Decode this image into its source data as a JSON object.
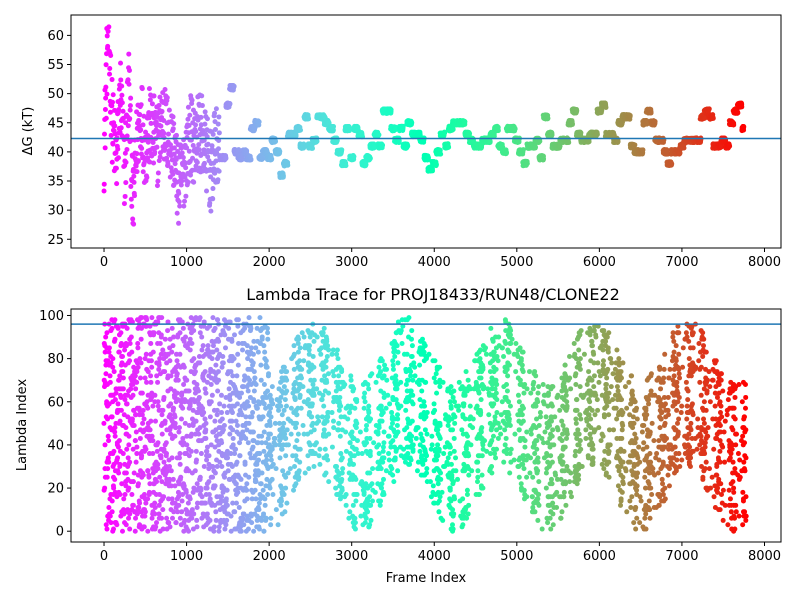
{
  "chart_data": [
    {
      "type": "scatter",
      "title": "",
      "xlabel": "",
      "ylabel": "ΔG (kT)",
      "xlim": [
        -400,
        8200
      ],
      "ylim": [
        23.5,
        63.5
      ],
      "xticks": [
        0,
        1000,
        2000,
        3000,
        4000,
        5000,
        6000,
        7000,
        8000
      ],
      "xtick_labels": [
        "0",
        "1000",
        "2000",
        "3000",
        "4000",
        "5000",
        "6000",
        "7000",
        "8000"
      ],
      "yticks": [
        25,
        30,
        35,
        40,
        45,
        50,
        55,
        60
      ],
      "ytick_labels": [
        "25",
        "30",
        "35",
        "40",
        "45",
        "50",
        "55",
        "60"
      ],
      "reference_line": {
        "axis": "y",
        "value": 42.3,
        "color": "#1f77b4"
      },
      "colormap": "rainbow (frame index mapped from red at 0 to violet at the last frame)",
      "trace": {
        "x": [
          0,
          50,
          100,
          150,
          200,
          250,
          300,
          350,
          400,
          450,
          500,
          550,
          600,
          650,
          700,
          750,
          800,
          850,
          900,
          950,
          1000,
          1050,
          1100,
          1150,
          1200,
          1250,
          1300,
          1350,
          1400,
          1450,
          1500,
          1550,
          1600,
          1650,
          1700,
          1750,
          1800,
          1850,
          1900,
          1950,
          2000,
          2050,
          2100,
          2150,
          2200,
          2250,
          2300,
          2350,
          2400,
          2450,
          2500,
          2550,
          2600,
          2650,
          2700,
          2750,
          2800,
          2850,
          2900,
          2950,
          3000,
          3050,
          3100,
          3150,
          3200,
          3250,
          3300,
          3350,
          3400,
          3450,
          3500,
          3550,
          3600,
          3650,
          3700,
          3750,
          3800,
          3850,
          3900,
          3950,
          4000,
          4050,
          4100,
          4150,
          4200,
          4250,
          4300,
          4350,
          4400,
          4450,
          4500,
          4550,
          4600,
          4650,
          4700,
          4750,
          4800,
          4850,
          4900,
          4950,
          5000,
          5050,
          5100,
          5150,
          5200,
          5250,
          5300,
          5350,
          5400,
          5450,
          5500,
          5550,
          5600,
          5650,
          5700,
          5750,
          5800,
          5850,
          5900,
          5950,
          6000,
          6050,
          6100,
          6150,
          6200,
          6250,
          6300,
          6350,
          6400,
          6450,
          6500,
          6550,
          6600,
          6650,
          6700,
          6750,
          6800,
          6850,
          6900,
          6950,
          7000,
          7050,
          7100,
          7150,
          7200,
          7250,
          7300,
          7350,
          7400,
          7450,
          7500,
          7550,
          7600,
          7650,
          7700,
          7750
        ],
        "y": [
          40,
          62,
          45,
          38,
          50,
          36,
          52,
          30,
          42,
          47,
          40,
          44,
          43,
          41,
          46,
          44,
          42,
          40,
          34,
          36,
          40,
          43,
          41,
          44,
          42,
          39,
          36,
          41,
          39,
          39,
          48,
          51,
          40,
          39,
          40,
          39,
          44,
          45,
          39,
          40,
          39,
          42,
          40,
          36,
          38,
          43,
          43,
          44,
          41,
          46,
          41,
          42,
          46,
          46,
          45,
          44,
          42,
          40,
          38,
          44,
          39,
          44,
          43,
          38,
          39,
          41,
          43,
          41,
          47,
          47,
          44,
          42,
          44,
          41,
          45,
          43,
          43,
          42,
          39,
          37,
          38,
          40,
          43,
          41,
          44,
          45,
          45,
          45,
          43,
          42,
          41,
          41,
          42,
          42,
          43,
          44,
          41,
          40,
          44,
          44,
          42,
          40,
          38,
          41,
          41,
          42,
          39,
          46,
          43,
          41,
          41,
          42,
          42,
          45,
          47,
          43,
          42,
          42,
          43,
          43,
          47,
          48,
          43,
          43,
          42,
          45,
          46,
          46,
          41,
          40,
          40,
          45,
          47,
          45,
          42,
          42,
          40,
          38,
          40,
          40,
          41,
          42,
          42,
          42,
          42,
          46,
          47,
          46,
          41,
          41,
          42,
          41,
          45,
          47,
          48,
          44
        ]
      }
    },
    {
      "type": "scatter",
      "title": "Lambda Trace for PROJ18433/RUN48/CLONE22",
      "xlabel": "Frame Index",
      "ylabel": "Lambda Index",
      "xlim": [
        -400,
        8200
      ],
      "ylim": [
        -5,
        103
      ],
      "xticks": [
        0,
        1000,
        2000,
        3000,
        4000,
        5000,
        6000,
        7000,
        8000
      ],
      "xtick_labels": [
        "0",
        "1000",
        "2000",
        "3000",
        "4000",
        "5000",
        "6000",
        "7000",
        "8000"
      ],
      "yticks": [
        0,
        20,
        40,
        60,
        80,
        100
      ],
      "ytick_labels": [
        "0",
        "20",
        "40",
        "60",
        "80",
        "100"
      ],
      "reference_line": {
        "axis": "y",
        "value": 96,
        "color": "#1f77b4"
      },
      "colormap": "rainbow (frame index mapped from red at 0 to violet at the last frame)",
      "frame_range": [
        0,
        7780
      ],
      "lambda_range": [
        0,
        99
      ]
    }
  ]
}
